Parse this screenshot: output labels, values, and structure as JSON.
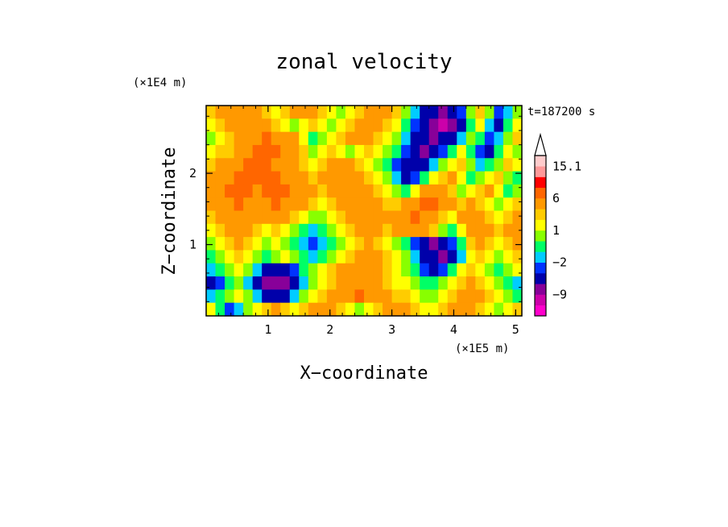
{
  "chart_data": {
    "type": "heatmap",
    "title": "zonal velocity",
    "time_label": "t=187200 s",
    "xlabel": "X−coordinate",
    "ylabel": "Z−coordinate",
    "x_unit": "(×1E5 m)",
    "y_unit": "(×1E4 m)",
    "xlim": [
      0.0,
      5.1
    ],
    "ylim": [
      0.0,
      2.95
    ],
    "x_ticks": [
      1,
      2,
      3,
      4,
      5
    ],
    "x_tick_labels": [
      "1",
      "2",
      "3",
      "4",
      "5"
    ],
    "y_ticks": [
      1,
      2
    ],
    "y_tick_labels": [
      "1",
      "2"
    ],
    "colorbar": {
      "levels": [
        -15,
        -12,
        -9,
        -6,
        -3,
        -2,
        -1,
        0,
        1,
        2,
        3,
        6,
        9,
        12,
        15.1
      ],
      "colors": [
        "#ff00cc",
        "#cc00aa",
        "#880099",
        "#0000aa",
        "#0033ff",
        "#00ccff",
        "#00ff66",
        "#88ff00",
        "#ffff00",
        "#ffcc00",
        "#ff9900",
        "#ff6600",
        "#ff0000",
        "#ff9999",
        "#ffcccc"
      ],
      "extend_color": "#ffffff",
      "labels": [
        {
          "value": 15.1,
          "text": "15.1"
        },
        {
          "value": 6,
          "text": "6"
        },
        {
          "value": 1,
          "text": "1"
        },
        {
          "value": -2,
          "text": "−2"
        },
        {
          "value": -9,
          "text": "−9"
        }
      ]
    },
    "field": {
      "nx": 34,
      "nz": 16,
      "values": [
        [
          2,
          3,
          4,
          5,
          4,
          3,
          2,
          1,
          2,
          3,
          4,
          3,
          2,
          1,
          0,
          1,
          2,
          3,
          4,
          3,
          2,
          0,
          -2,
          -4,
          -6,
          -8,
          -5,
          -3,
          0,
          2,
          0,
          -3,
          -2,
          0
        ],
        [
          1,
          2,
          3,
          4,
          5,
          4,
          3,
          2,
          1,
          0,
          1,
          2,
          1,
          0,
          1,
          2,
          3,
          4,
          3,
          2,
          1,
          -1,
          -3,
          -5,
          -8,
          -10,
          -7,
          -4,
          -1,
          1,
          -2,
          -4,
          -1,
          1
        ],
        [
          0,
          1,
          2,
          3,
          4,
          5,
          6,
          5,
          4,
          3,
          1,
          -1,
          0,
          1,
          2,
          3,
          4,
          3,
          2,
          1,
          0,
          -2,
          -4,
          -6,
          -9,
          -6,
          -4,
          -2,
          0,
          -1,
          -3,
          -2,
          0,
          2
        ],
        [
          1,
          2,
          2,
          3,
          4,
          6,
          7,
          6,
          5,
          4,
          2,
          0,
          1,
          2,
          1,
          0,
          1,
          2,
          1,
          0,
          -1,
          -3,
          -5,
          -7,
          -5,
          -3,
          -1,
          1,
          -1,
          -3,
          -4,
          -1,
          1,
          0
        ],
        [
          2,
          3,
          4,
          5,
          6,
          7,
          6,
          5,
          4,
          3,
          2,
          1,
          2,
          3,
          4,
          3,
          2,
          1,
          0,
          -1,
          -3,
          -5,
          -6,
          -4,
          -2,
          0,
          1,
          2,
          0,
          -2,
          -1,
          0,
          2,
          1
        ],
        [
          3,
          4,
          5,
          6,
          7,
          8,
          7,
          6,
          5,
          4,
          3,
          2,
          3,
          4,
          5,
          4,
          3,
          2,
          1,
          0,
          -2,
          -4,
          -3,
          -1,
          1,
          2,
          3,
          1,
          -1,
          0,
          1,
          2,
          0,
          -1
        ],
        [
          4,
          5,
          6,
          7,
          6,
          5,
          6,
          7,
          6,
          5,
          4,
          3,
          2,
          3,
          4,
          5,
          4,
          3,
          2,
          1,
          0,
          -1,
          1,
          3,
          4,
          3,
          2,
          0,
          1,
          2,
          3,
          1,
          -1,
          0
        ],
        [
          3,
          4,
          5,
          6,
          5,
          4,
          5,
          6,
          5,
          4,
          3,
          2,
          1,
          2,
          3,
          4,
          5,
          4,
          3,
          2,
          2,
          3,
          5,
          6,
          7,
          5,
          3,
          2,
          3,
          2,
          1,
          0,
          1,
          2
        ],
        [
          2,
          3,
          4,
          5,
          4,
          3,
          3,
          4,
          3,
          2,
          1,
          0,
          0,
          1,
          2,
          3,
          4,
          5,
          4,
          3,
          4,
          5,
          6,
          5,
          4,
          2,
          1,
          3,
          4,
          3,
          2,
          1,
          2,
          3
        ],
        [
          1,
          2,
          3,
          4,
          3,
          2,
          1,
          2,
          1,
          0,
          -1,
          -2,
          -1,
          0,
          1,
          2,
          3,
          4,
          3,
          2,
          3,
          4,
          5,
          3,
          2,
          0,
          -1,
          1,
          3,
          4,
          3,
          2,
          3,
          4
        ],
        [
          0,
          1,
          2,
          3,
          2,
          1,
          0,
          1,
          0,
          -1,
          -2,
          -3,
          -2,
          -1,
          0,
          1,
          2,
          3,
          2,
          1,
          0,
          -1,
          -3,
          -5,
          -7,
          -6,
          -3,
          -1,
          2,
          3,
          2,
          1,
          2,
          3
        ],
        [
          -1,
          0,
          1,
          2,
          1,
          0,
          -1,
          0,
          1,
          0,
          -1,
          -2,
          -1,
          0,
          1,
          2,
          3,
          4,
          3,
          2,
          1,
          0,
          -2,
          -4,
          -6,
          -8,
          -5,
          -2,
          1,
          2,
          1,
          0,
          1,
          2
        ],
        [
          -2,
          -1,
          0,
          1,
          0,
          -2,
          -4,
          -6,
          -5,
          -3,
          -1,
          0,
          1,
          2,
          3,
          4,
          5,
          4,
          3,
          2,
          1,
          0,
          -1,
          -3,
          -4,
          -3,
          -1,
          1,
          2,
          1,
          0,
          -1,
          0,
          1
        ],
        [
          -4,
          -3,
          -1,
          0,
          -2,
          -5,
          -8,
          -9,
          -7,
          -4,
          -2,
          0,
          1,
          2,
          3,
          4,
          5,
          4,
          3,
          2,
          1,
          1,
          0,
          -1,
          -1,
          0,
          1,
          2,
          3,
          2,
          1,
          0,
          -1,
          -2
        ],
        [
          -2,
          -1,
          0,
          1,
          0,
          -2,
          -4,
          -5,
          -4,
          -2,
          0,
          1,
          2,
          3,
          4,
          5,
          6,
          5,
          4,
          3,
          2,
          2,
          1,
          0,
          0,
          1,
          2,
          3,
          4,
          3,
          2,
          1,
          0,
          -1
        ],
        [
          1,
          -1,
          -3,
          -2,
          0,
          1,
          2,
          3,
          2,
          1,
          2,
          3,
          4,
          3,
          2,
          1,
          0,
          1,
          2,
          3,
          4,
          3,
          2,
          1,
          1,
          2,
          3,
          4,
          3,
          2,
          1,
          0,
          1,
          2
        ]
      ]
    }
  }
}
